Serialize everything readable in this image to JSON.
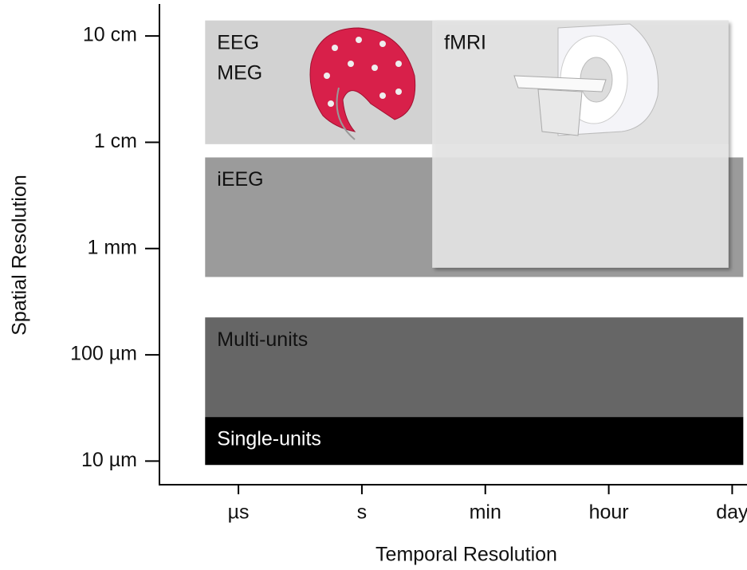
{
  "chart_data": {
    "type": "range",
    "x_label": "Temporal Resolution",
    "y_label": "Spatial Resolution",
    "xlim": [
      -0.64,
      4.12
    ],
    "xticks": [
      {
        "value": 0,
        "label": "µs"
      },
      {
        "value": 1,
        "label": "s"
      },
      {
        "value": 2,
        "label": "min"
      },
      {
        "value": 3,
        "label": "hour"
      },
      {
        "value": 4,
        "label": "day"
      }
    ],
    "ylim": [
      6e-06,
      0.2
    ],
    "y_scale": "log",
    "yticks": [
      {
        "value": 0.1,
        "label": "10 cm"
      },
      {
        "value": 0.01,
        "label": "1 cm"
      },
      {
        "value": 0.001,
        "label": "1 mm"
      },
      {
        "value": 0.0001,
        "label": "100 µm"
      },
      {
        "value": 1e-05,
        "label": "10 µm"
      }
    ],
    "series": [
      {
        "names": [
          "EEG",
          "MEG"
        ],
        "color": "#d2d2d2",
        "x": [
          -0.27,
          3.97
        ],
        "y": [
          0.0096,
          0.14
        ]
      },
      {
        "names": [
          "iEEG"
        ],
        "color": "#9b9b9b",
        "x": [
          -0.27,
          4.09
        ],
        "y": [
          0.00054,
          0.0072
        ]
      },
      {
        "names": [
          "fMRI"
        ],
        "color": "#e6e6e6",
        "x": [
          1.57,
          3.97
        ],
        "y": [
          0.00066,
          0.14
        ]
      },
      {
        "names": [
          "Multi-units"
        ],
        "color": "#666666",
        "x": [
          -0.27,
          4.09
        ],
        "y": [
          2.6e-05,
          0.000225
        ]
      },
      {
        "names": [
          "Single-units"
        ],
        "color": "#000000",
        "text_color": "#ffffff",
        "x": [
          -0.27,
          4.09
        ],
        "y": [
          9.2e-06,
          2.6e-05
        ]
      }
    ]
  }
}
